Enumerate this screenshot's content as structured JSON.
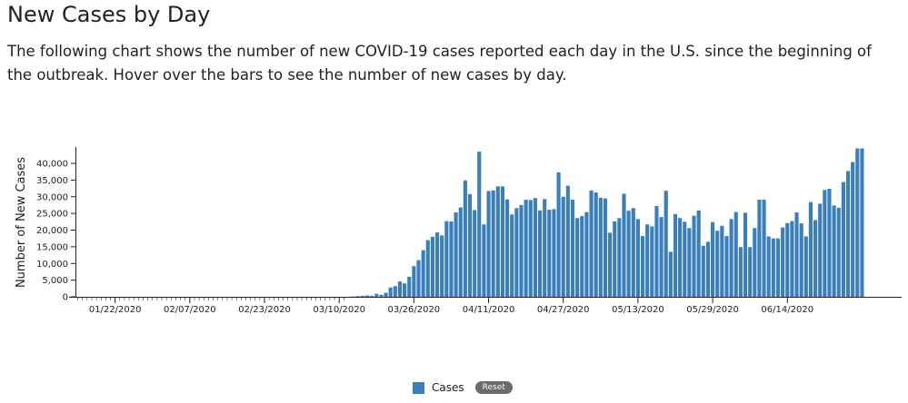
{
  "page": {
    "title": "New Cases by Day",
    "description": "The following chart shows the number of new COVID-19 cases reported each day in the U.S. since the beginning of the outbreak. Hover over the bars to see the number of new cases by day."
  },
  "legend": {
    "label": "Cases",
    "reset_label": "Reset"
  },
  "colors": {
    "bar": "#3a7fbd"
  },
  "chart_data": {
    "type": "bar",
    "title": "",
    "xlabel": "",
    "ylabel": "Number of New Cases",
    "start_date": "2020-01-14",
    "x_tick_labels": [
      "01/22/2020",
      "02/07/2020",
      "02/23/2020",
      "03/10/2020",
      "03/26/2020",
      "04/11/2020",
      "04/27/2020",
      "05/13/2020",
      "05/29/2020",
      "06/14/2020"
    ],
    "y_tick_labels": [
      "0",
      "5,000",
      "10,000",
      "15,000",
      "20,000",
      "25,000",
      "30,000",
      "35,000",
      "40,000"
    ],
    "ylim": [
      0,
      45000
    ],
    "series": [
      {
        "name": "Cases",
        "values": [
          0,
          0,
          0,
          0,
          0,
          0,
          0,
          0,
          0,
          0,
          0,
          0,
          0,
          0,
          0,
          0,
          0,
          0,
          0,
          0,
          0,
          0,
          0,
          0,
          0,
          0,
          0,
          0,
          0,
          0,
          0,
          0,
          0,
          0,
          0,
          0,
          0,
          0,
          0,
          0,
          0,
          0,
          0,
          0,
          0,
          0,
          0,
          0,
          0,
          0,
          0,
          0,
          0,
          0,
          0,
          0,
          0,
          0,
          0,
          100,
          200,
          300,
          400,
          300,
          900,
          600,
          1200,
          2800,
          3200,
          4600,
          4000,
          6000,
          9200,
          11000,
          14000,
          17000,
          18000,
          19300,
          18400,
          22700,
          22600,
          25300,
          26800,
          34900,
          30800,
          26000,
          43500,
          21700,
          31700,
          31900,
          33100,
          33100,
          29200,
          24700,
          26600,
          27500,
          29100,
          29000,
          29600,
          25900,
          29300,
          26100,
          26300,
          37300,
          30000,
          33300,
          29100,
          23600,
          24200,
          25400,
          31900,
          31300,
          29700,
          29500,
          19200,
          22600,
          23600,
          30900,
          25800,
          26600,
          23300,
          18200,
          21700,
          21100,
          27200,
          23900,
          31800,
          13500,
          24800,
          23600,
          22500,
          20600,
          24300,
          25900,
          15300,
          16500,
          22400,
          19800,
          21300,
          18200,
          23300,
          25400,
          14900,
          25200,
          14900,
          20600,
          29100,
          29100,
          18100,
          17500,
          17500,
          20800,
          22100,
          22700,
          25300,
          22000,
          18100,
          28400,
          23000,
          27900,
          32000,
          32400,
          27400,
          26700,
          34400,
          37700,
          40400,
          44500,
          44500
        ]
      }
    ]
  }
}
